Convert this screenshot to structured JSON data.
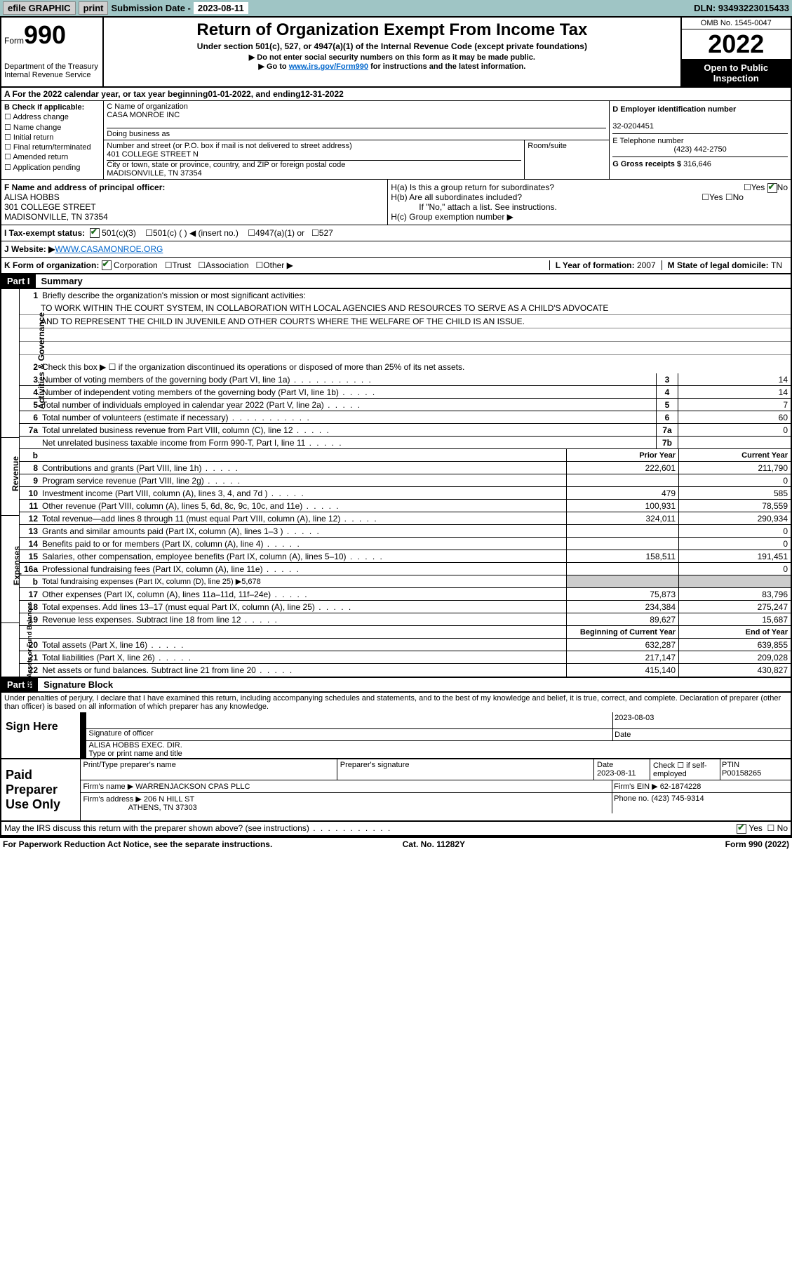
{
  "topbar": {
    "efile": "efile GRAPHIC",
    "print": "print",
    "sub_lbl": "Submission Date - ",
    "sub_date": "2023-08-11",
    "dln": "DLN: 93493223015433"
  },
  "header": {
    "form": "990",
    "form_lbl": "Form",
    "title": "Return of Organization Exempt From Income Tax",
    "sub": "Under section 501(c), 527, or 4947(a)(1) of the Internal Revenue Code (except private foundations)",
    "instr1": "▶ Do not enter social security numbers on this form as it may be made public.",
    "instr2_a": "▶ Go to ",
    "instr2_link": "www.irs.gov/Form990",
    "instr2_b": " for instructions and the latest information.",
    "dept": "Department of the Treasury",
    "irs": "Internal Revenue Service",
    "omb": "OMB No. 1545-0047",
    "year": "2022",
    "open": "Open to Public Inspection"
  },
  "A": {
    "text": "A For the 2022 calendar year, or tax year beginning ",
    "d1": "01-01-2022",
    "mid": " , and ending ",
    "d2": "12-31-2022"
  },
  "B": {
    "hdr": "B Check if applicable:",
    "opts": [
      "Address change",
      "Name change",
      "Initial return",
      "Final return/terminated",
      "Amended return",
      "Application pending"
    ]
  },
  "C": {
    "name_lbl": "C Name of organization",
    "name": "CASA MONROE INC",
    "dba_lbl": "Doing business as",
    "street_lbl": "Number and street (or P.O. box if mail is not delivered to street address)",
    "street": "401 COLLEGE STREET N",
    "room_lbl": "Room/suite",
    "city_lbl": "City or town, state or province, country, and ZIP or foreign postal code",
    "city": "MADISONVILLE, TN  37354"
  },
  "D": {
    "lbl": "D Employer identification number",
    "val": "32-0204451"
  },
  "E": {
    "lbl": "E Telephone number",
    "val": "(423) 442-2750"
  },
  "G": {
    "lbl": "G Gross receipts $ ",
    "val": "316,646"
  },
  "F": {
    "lbl": "F  Name and address of principal officer:",
    "name": "ALISA HOBBS",
    "addr1": "301 COLLEGE STREET",
    "addr2": "MADISONVILLE, TN  37354"
  },
  "H": {
    "a": "H(a)  Is this a group return for subordinates?",
    "b": "H(b)  Are all subordinates included?",
    "note": "If \"No,\" attach a list. See instructions.",
    "c": "H(c)  Group exemption number ▶",
    "yes": "Yes",
    "no": "No"
  },
  "I": {
    "lbl": "I    Tax-exempt status:",
    "o1": "501(c)(3)",
    "o2": "501(c) (  ) ◀ (insert no.)",
    "o3": "4947(a)(1) or",
    "o4": "527"
  },
  "J": {
    "lbl": "J   Website: ▶",
    "val": "  WWW.CASAMONROE.ORG"
  },
  "K": {
    "lbl": "K Form of organization:",
    "o1": "Corporation",
    "o2": "Trust",
    "o3": "Association",
    "o4": "Other ▶"
  },
  "L": {
    "lbl": "L Year of formation: ",
    "val": "2007"
  },
  "M": {
    "lbl": "M State of legal domicile: ",
    "val": "TN"
  },
  "part1": {
    "lbl": "Part I",
    "title": "Summary"
  },
  "part2": {
    "lbl": "Part II",
    "title": "Signature Block"
  },
  "mission": {
    "q": "Briefly describe the organization's mission or most significant activities:",
    "l1": "TO WORK WITHIN THE COURT SYSTEM, IN COLLABORATION WITH LOCAL AGENCIES AND RESOURCES TO SERVE AS A CHILD'S ADVOCATE",
    "l2": "AND TO REPRESENT THE CHILD IN JUVENILE AND OTHER COURTS WHERE THE WELFARE OF THE CHILD IS AN ISSUE."
  },
  "sec_ag": {
    "lbl": "Activities & Governance",
    "l2": "Check this box ▶ ☐  if the organization discontinued its operations or disposed of more than 25% of its net assets.",
    "l3": "Number of voting members of the governing body (Part VI, line 1a)",
    "v3": "14",
    "l4": "Number of independent voting members of the governing body (Part VI, line 1b)",
    "v4": "14",
    "l5": "Total number of individuals employed in calendar year 2022 (Part V, line 2a)",
    "v5": "7",
    "l6": "Total number of volunteers (estimate if necessary)",
    "v6": "60",
    "l7a": "Total unrelated business revenue from Part VIII, column (C), line 12",
    "v7a": "0",
    "l7b": "Net unrelated business taxable income from Form 990-T, Part I, line 11",
    "v7b": ""
  },
  "hdr_py": "Prior Year",
  "hdr_cy": "Current Year",
  "sec_rev": {
    "lbl": "Revenue",
    "r": [
      {
        "n": "8",
        "t": "Contributions and grants (Part VIII, line 1h)",
        "p": "222,601",
        "c": "211,790"
      },
      {
        "n": "9",
        "t": "Program service revenue (Part VIII, line 2g)",
        "p": "",
        "c": "0"
      },
      {
        "n": "10",
        "t": "Investment income (Part VIII, column (A), lines 3, 4, and 7d )",
        "p": "479",
        "c": "585"
      },
      {
        "n": "11",
        "t": "Other revenue (Part VIII, column (A), lines 5, 6d, 8c, 9c, 10c, and 11e)",
        "p": "100,931",
        "c": "78,559"
      },
      {
        "n": "12",
        "t": "Total revenue—add lines 8 through 11 (must equal Part VIII, column (A), line 12)",
        "p": "324,011",
        "c": "290,934"
      }
    ]
  },
  "sec_exp": {
    "lbl": "Expenses",
    "r": [
      {
        "n": "13",
        "t": "Grants and similar amounts paid (Part IX, column (A), lines 1–3 )",
        "p": "",
        "c": "0"
      },
      {
        "n": "14",
        "t": "Benefits paid to or for members (Part IX, column (A), line 4)",
        "p": "",
        "c": "0"
      },
      {
        "n": "15",
        "t": "Salaries, other compensation, employee benefits (Part IX, column (A), lines 5–10)",
        "p": "158,511",
        "c": "191,451"
      },
      {
        "n": "16a",
        "t": "Professional fundraising fees (Part IX, column (A), line 11e)",
        "p": "",
        "c": "0"
      },
      {
        "n": "b",
        "t": "Total fundraising expenses (Part IX, column (D), line 25) ▶5,678",
        "shade": true
      },
      {
        "n": "17",
        "t": "Other expenses (Part IX, column (A), lines 11a–11d, 11f–24e)",
        "p": "75,873",
        "c": "83,796"
      },
      {
        "n": "18",
        "t": "Total expenses. Add lines 13–17 (must equal Part IX, column (A), line 25)",
        "p": "234,384",
        "c": "275,247"
      },
      {
        "n": "19",
        "t": "Revenue less expenses. Subtract line 18 from line 12",
        "p": "89,627",
        "c": "15,687"
      }
    ]
  },
  "hdr_by": "Beginning of Current Year",
  "hdr_ey": "End of Year",
  "sec_net": {
    "lbl": "Net Assets or Fund Balances",
    "r": [
      {
        "n": "20",
        "t": "Total assets (Part X, line 16)",
        "p": "632,287",
        "c": "639,855"
      },
      {
        "n": "21",
        "t": "Total liabilities (Part X, line 26)",
        "p": "217,147",
        "c": "209,028"
      },
      {
        "n": "22",
        "t": "Net assets or fund balances. Subtract line 21 from line 20",
        "p": "415,140",
        "c": "430,827"
      }
    ]
  },
  "declare": "Under penalties of perjury, I declare that I have examined this return, including accompanying schedules and statements, and to the best of my knowledge and belief, it is true, correct, and complete. Declaration of preparer (other than officer) is based on all information of which preparer has any knowledge.",
  "sign": {
    "here": "Sign Here",
    "sig_off": "Signature of officer",
    "date": "Date",
    "date_v": "2023-08-03",
    "name": "ALISA HOBBS  EXEC. DIR.",
    "name_lbl": "Type or print name and title"
  },
  "prep": {
    "lbl": "Paid Preparer Use Only",
    "c1": "Print/Type preparer's name",
    "c2": "Preparer's signature",
    "c3": "Date",
    "c3v": "2023-08-11",
    "c4": "Check ☐ if self-employed",
    "c5": "PTIN",
    "c5v": "P00158265",
    "firm_lbl": "Firm's name    ▶ ",
    "firm": "WARRENJACKSON CPAS PLLC",
    "ein_lbl": "Firm's EIN ▶ ",
    "ein": "62-1874228",
    "addr_lbl": "Firm's address ▶ ",
    "addr": "206 N HILL ST",
    "addr2": "ATHENS, TN  37303",
    "ph_lbl": "Phone no. ",
    "ph": "(423) 745-9314"
  },
  "may": "May the IRS discuss this return with the preparer shown above? (see instructions)",
  "foot": {
    "l": "For Paperwork Reduction Act Notice, see the separate instructions.",
    "m": "Cat. No. 11282Y",
    "r": "Form 990 (2022)"
  }
}
